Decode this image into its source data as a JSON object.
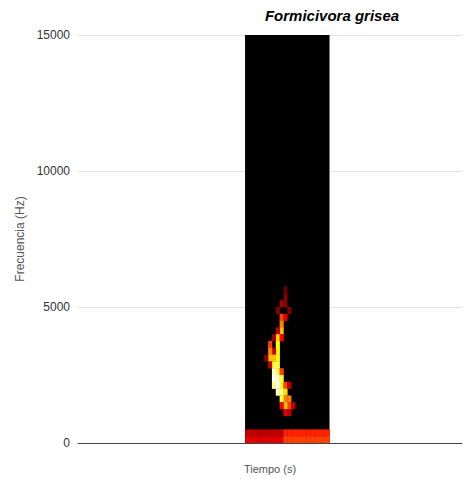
{
  "chart_data": {
    "type": "heatmap",
    "title": "Formicivora grisea",
    "x_label": "Tiempo (s)",
    "y_label": "Frecuencia (Hz)",
    "xlim": [
      0,
      1
    ],
    "ylim": [
      0,
      15000
    ],
    "yticks": [
      0,
      5000,
      10000,
      15000
    ],
    "grid": true,
    "tick_labels": "y",
    "time_range": [
      0.435,
      0.655
    ],
    "freq_range": [
      0,
      15000
    ],
    "time_step": 0.01,
    "freq_step": 250,
    "color_range": [
      0,
      1
    ],
    "cells": [
      [
        0.525,
        4500,
        0.5
      ],
      [
        0.535,
        4500,
        0.35
      ],
      [
        0.525,
        4250,
        0.6
      ],
      [
        0.525,
        4000,
        0.7
      ],
      [
        0.515,
        4000,
        0.3
      ],
      [
        0.515,
        3750,
        0.75
      ],
      [
        0.525,
        3750,
        0.4
      ],
      [
        0.515,
        3500,
        0.8
      ],
      [
        0.515,
        3250,
        0.8
      ],
      [
        0.505,
        3250,
        0.3
      ],
      [
        0.515,
        3000,
        0.8
      ],
      [
        0.515,
        2750,
        0.85
      ],
      [
        0.515,
        2500,
        0.85
      ],
      [
        0.525,
        2500,
        0.5
      ],
      [
        0.525,
        2250,
        0.85
      ],
      [
        0.525,
        2000,
        0.8
      ],
      [
        0.535,
        2000,
        0.5
      ],
      [
        0.535,
        1750,
        0.75
      ],
      [
        0.535,
        1500,
        0.6
      ],
      [
        0.545,
        1500,
        0.6
      ],
      [
        0.545,
        1250,
        0.5
      ],
      [
        0.495,
        3500,
        0.5
      ],
      [
        0.495,
        3250,
        0.6
      ],
      [
        0.495,
        3000,
        0.7
      ],
      [
        0.505,
        3000,
        0.7
      ],
      [
        0.505,
        2750,
        0.85
      ],
      [
        0.505,
        2500,
        0.95
      ],
      [
        0.505,
        2250,
        1.0
      ],
      [
        0.515,
        2250,
        0.95
      ],
      [
        0.505,
        2000,
        0.9
      ],
      [
        0.515,
        2000,
        1.0
      ],
      [
        0.515,
        1750,
        0.95
      ],
      [
        0.525,
        1750,
        0.9
      ],
      [
        0.525,
        1500,
        0.85
      ],
      [
        0.535,
        1250,
        0.7
      ],
      [
        0.525,
        5000,
        0.25
      ],
      [
        0.535,
        5000,
        0.2
      ],
      [
        0.535,
        5250,
        0.2
      ],
      [
        0.535,
        5500,
        0.15
      ],
      [
        0.515,
        4750,
        0.2
      ],
      [
        0.545,
        4750,
        0.2
      ],
      [
        0.505,
        3750,
        0.25
      ],
      [
        0.495,
        2750,
        0.3
      ],
      [
        0.485,
        3000,
        0.2
      ],
      [
        0.545,
        2000,
        0.3
      ],
      [
        0.555,
        1250,
        0.3
      ],
      [
        0.545,
        1000,
        0.3
      ],
      [
        0.535,
        1000,
        0.35
      ],
      [
        0.525,
        1250,
        0.4
      ],
      [
        0.435,
        250,
        0.3
      ],
      [
        0.445,
        250,
        0.3
      ],
      [
        0.455,
        250,
        0.3
      ],
      [
        0.465,
        250,
        0.3
      ],
      [
        0.475,
        250,
        0.3
      ],
      [
        0.485,
        250,
        0.3
      ],
      [
        0.495,
        250,
        0.3
      ],
      [
        0.505,
        250,
        0.3
      ],
      [
        0.515,
        250,
        0.3
      ],
      [
        0.525,
        250,
        0.3
      ],
      [
        0.535,
        250,
        0.45
      ],
      [
        0.545,
        250,
        0.45
      ],
      [
        0.555,
        250,
        0.45
      ],
      [
        0.565,
        250,
        0.45
      ],
      [
        0.575,
        250,
        0.45
      ],
      [
        0.585,
        250,
        0.45
      ],
      [
        0.595,
        250,
        0.45
      ],
      [
        0.605,
        250,
        0.45
      ],
      [
        0.615,
        250,
        0.45
      ],
      [
        0.625,
        250,
        0.45
      ],
      [
        0.635,
        250,
        0.45
      ],
      [
        0.645,
        250,
        0.45
      ],
      [
        0.435,
        0,
        0.35
      ],
      [
        0.445,
        0,
        0.35
      ],
      [
        0.455,
        0,
        0.35
      ],
      [
        0.465,
        0,
        0.35
      ],
      [
        0.475,
        0,
        0.35
      ],
      [
        0.485,
        0,
        0.35
      ],
      [
        0.495,
        0,
        0.35
      ],
      [
        0.505,
        0,
        0.35
      ],
      [
        0.515,
        0,
        0.35
      ],
      [
        0.525,
        0,
        0.35
      ],
      [
        0.535,
        0,
        0.5
      ],
      [
        0.545,
        0,
        0.5
      ],
      [
        0.555,
        0,
        0.5
      ],
      [
        0.565,
        0,
        0.5
      ],
      [
        0.575,
        0,
        0.5
      ],
      [
        0.585,
        0,
        0.5
      ],
      [
        0.595,
        0,
        0.5
      ],
      [
        0.605,
        0,
        0.5
      ],
      [
        0.615,
        0,
        0.5
      ],
      [
        0.625,
        0,
        0.5
      ],
      [
        0.635,
        0,
        0.5
      ],
      [
        0.645,
        0,
        0.5
      ]
    ]
  }
}
